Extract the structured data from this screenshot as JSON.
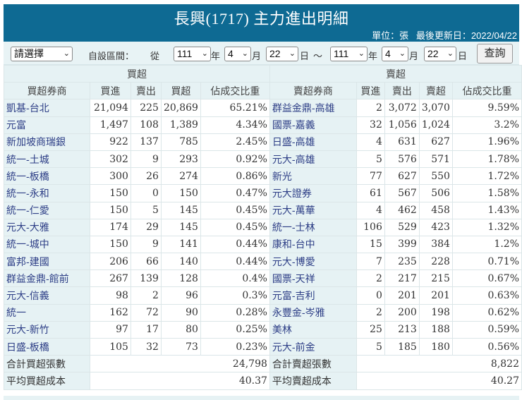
{
  "header": {
    "title": "長興(1717) 主力進出明細",
    "unit_label": "單位：張",
    "last_update_label": "最後更新日：2022/04/22"
  },
  "toolbar": {
    "preset_select": "請選擇",
    "custom_range_label": "自設區間：",
    "from_label": "從",
    "from_year": "111",
    "from_month": "4",
    "from_day": "22",
    "to_year": "111",
    "to_month": "4",
    "to_day": "22",
    "year_unit": "年",
    "month_unit": "月",
    "day_unit": "日",
    "range_separator": "～",
    "query_button": "查詢",
    "chevron": "⌄"
  },
  "buy_section": {
    "title": "買超",
    "columns": [
      "買超券商",
      "買進",
      "賣出",
      "買超",
      "佔成交比重"
    ],
    "rows": [
      {
        "broker": "凱基-台北",
        "buy": "21,094",
        "sell": "225",
        "net": "20,869",
        "pct": "65.21%"
      },
      {
        "broker": "元富",
        "buy": "1,497",
        "sell": "108",
        "net": "1,389",
        "pct": "4.34%"
      },
      {
        "broker": "新加坡商瑞銀",
        "buy": "922",
        "sell": "137",
        "net": "785",
        "pct": "2.45%"
      },
      {
        "broker": "統一-土城",
        "buy": "302",
        "sell": "9",
        "net": "293",
        "pct": "0.92%"
      },
      {
        "broker": "統一-板橋",
        "buy": "300",
        "sell": "26",
        "net": "274",
        "pct": "0.86%"
      },
      {
        "broker": "統一-永和",
        "buy": "150",
        "sell": "0",
        "net": "150",
        "pct": "0.47%"
      },
      {
        "broker": "統一-仁愛",
        "buy": "150",
        "sell": "5",
        "net": "145",
        "pct": "0.45%"
      },
      {
        "broker": "元大-大雅",
        "buy": "174",
        "sell": "29",
        "net": "145",
        "pct": "0.45%"
      },
      {
        "broker": "統一-城中",
        "buy": "150",
        "sell": "9",
        "net": "141",
        "pct": "0.44%"
      },
      {
        "broker": "富邦-建國",
        "buy": "206",
        "sell": "66",
        "net": "140",
        "pct": "0.44%"
      },
      {
        "broker": "群益金鼎-館前",
        "buy": "267",
        "sell": "139",
        "net": "128",
        "pct": "0.4%"
      },
      {
        "broker": "元大-信義",
        "buy": "98",
        "sell": "2",
        "net": "96",
        "pct": "0.3%"
      },
      {
        "broker": "統一",
        "buy": "162",
        "sell": "72",
        "net": "90",
        "pct": "0.28%"
      },
      {
        "broker": "元大-新竹",
        "buy": "97",
        "sell": "17",
        "net": "80",
        "pct": "0.25%"
      },
      {
        "broker": "日盛-板橋",
        "buy": "105",
        "sell": "32",
        "net": "73",
        "pct": "0.23%"
      }
    ],
    "total_label": "合計買超張數",
    "total_value": "24,798",
    "avg_label": "平均買超成本",
    "avg_value": "40.37"
  },
  "sell_section": {
    "title": "賣超",
    "columns": [
      "賣超券商",
      "買進",
      "賣出",
      "賣超",
      "佔成交比重"
    ],
    "rows": [
      {
        "broker": "群益金鼎-高雄",
        "buy": "2",
        "sell": "3,072",
        "net": "3,070",
        "pct": "9.59%"
      },
      {
        "broker": "國票-嘉義",
        "buy": "32",
        "sell": "1,056",
        "net": "1,024",
        "pct": "3.2%"
      },
      {
        "broker": "日盛-高雄",
        "buy": "4",
        "sell": "631",
        "net": "627",
        "pct": "1.96%"
      },
      {
        "broker": "元大-高雄",
        "buy": "5",
        "sell": "576",
        "net": "571",
        "pct": "1.78%"
      },
      {
        "broker": "新光",
        "buy": "77",
        "sell": "627",
        "net": "550",
        "pct": "1.72%"
      },
      {
        "broker": "元大證券",
        "buy": "61",
        "sell": "567",
        "net": "506",
        "pct": "1.58%"
      },
      {
        "broker": "元大-萬華",
        "buy": "4",
        "sell": "462",
        "net": "458",
        "pct": "1.43%"
      },
      {
        "broker": "統一-士林",
        "buy": "106",
        "sell": "529",
        "net": "423",
        "pct": "1.32%"
      },
      {
        "broker": "康和-台中",
        "buy": "15",
        "sell": "399",
        "net": "384",
        "pct": "1.2%"
      },
      {
        "broker": "元大-博愛",
        "buy": "7",
        "sell": "235",
        "net": "228",
        "pct": "0.71%"
      },
      {
        "broker": "國票-天祥",
        "buy": "2",
        "sell": "217",
        "net": "215",
        "pct": "0.67%"
      },
      {
        "broker": "元富-吉利",
        "buy": "0",
        "sell": "201",
        "net": "201",
        "pct": "0.63%"
      },
      {
        "broker": "永豐金-岑雅",
        "buy": "2",
        "sell": "200",
        "net": "198",
        "pct": "0.62%"
      },
      {
        "broker": "美林",
        "buy": "25",
        "sell": "213",
        "net": "188",
        "pct": "0.59%"
      },
      {
        "broker": "元大-前金",
        "buy": "5",
        "sell": "185",
        "net": "180",
        "pct": "0.56%"
      }
    ],
    "total_label": "合計賣超張數",
    "total_value": "8,822",
    "avg_label": "平均賣超成本",
    "avg_value": "40.27"
  },
  "colors": {
    "banner": "#0e6a93",
    "header_bg": "#e6f2f4",
    "broker_link": "#2d3e86",
    "grid_border": "#dbe6e8"
  }
}
